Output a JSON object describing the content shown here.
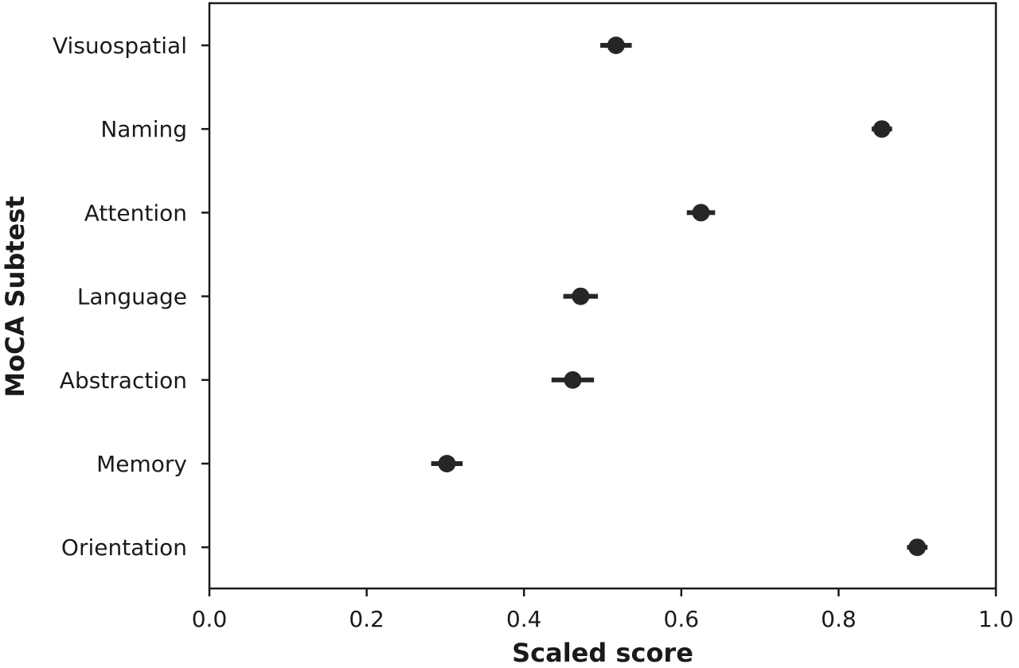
{
  "chart_data": {
    "type": "scatter",
    "orientation": "horizontal",
    "xlabel": "Scaled score",
    "ylabel": "MoCA Subtest",
    "xlim": [
      0.0,
      1.0
    ],
    "xticks": [
      "0.0",
      "0.2",
      "0.4",
      "0.6",
      "0.8",
      "1.0"
    ],
    "grid": false,
    "points": [
      {
        "category": "Visuospatial",
        "value": 0.517,
        "ci_low": 0.497,
        "ci_high": 0.537
      },
      {
        "category": "Naming",
        "value": 0.855,
        "ci_low": 0.842,
        "ci_high": 0.868
      },
      {
        "category": "Attention",
        "value": 0.625,
        "ci_low": 0.607,
        "ci_high": 0.643
      },
      {
        "category": "Language",
        "value": 0.472,
        "ci_low": 0.45,
        "ci_high": 0.494
      },
      {
        "category": "Abstraction",
        "value": 0.462,
        "ci_low": 0.435,
        "ci_high": 0.489
      },
      {
        "category": "Memory",
        "value": 0.302,
        "ci_low": 0.282,
        "ci_high": 0.322
      },
      {
        "category": "Orientation",
        "value": 0.9,
        "ci_low": 0.887,
        "ci_high": 0.913
      }
    ],
    "colors": {
      "marker": "#262626",
      "axis": "#1a1a1a"
    }
  }
}
